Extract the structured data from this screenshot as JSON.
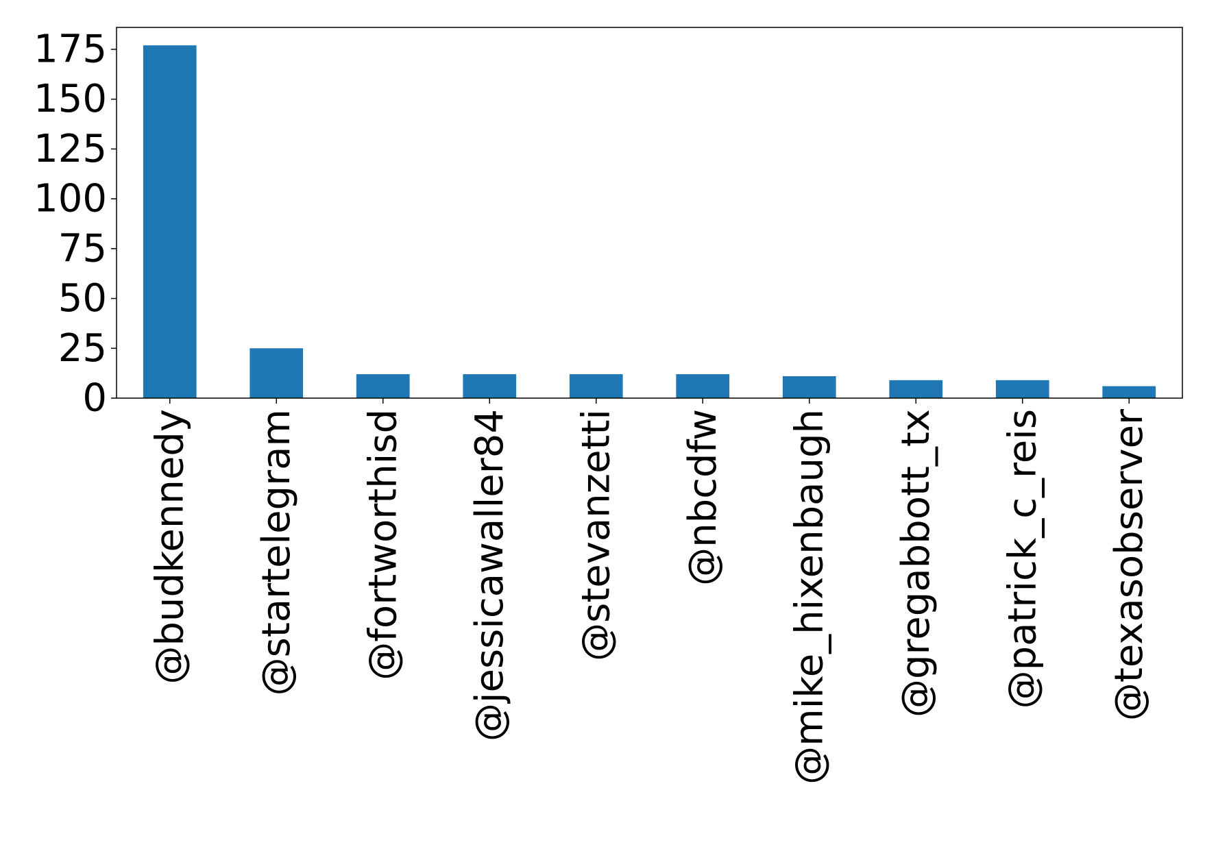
{
  "chart_data": {
    "type": "bar",
    "title": "",
    "xlabel": "",
    "ylabel": "",
    "categories": [
      "@budkennedy",
      "@startelegram",
      "@fortworthisd",
      "@jessicawaller84",
      "@stevanzetti",
      "@nbcdfw",
      "@mike_hixenbaugh",
      "@gregabbott_tx",
      "@patrick_c_reis",
      "@texasobserver"
    ],
    "values": [
      177,
      25,
      12,
      12,
      12,
      12,
      11,
      9,
      9,
      6
    ],
    "ylim": [
      0,
      186
    ],
    "yticks": [
      0,
      25,
      50,
      75,
      100,
      125,
      150,
      175
    ],
    "grid": false,
    "legend": "none",
    "colors": {
      "bar": "#1f77b4",
      "axis": "#000000",
      "background": "#ffffff"
    }
  }
}
